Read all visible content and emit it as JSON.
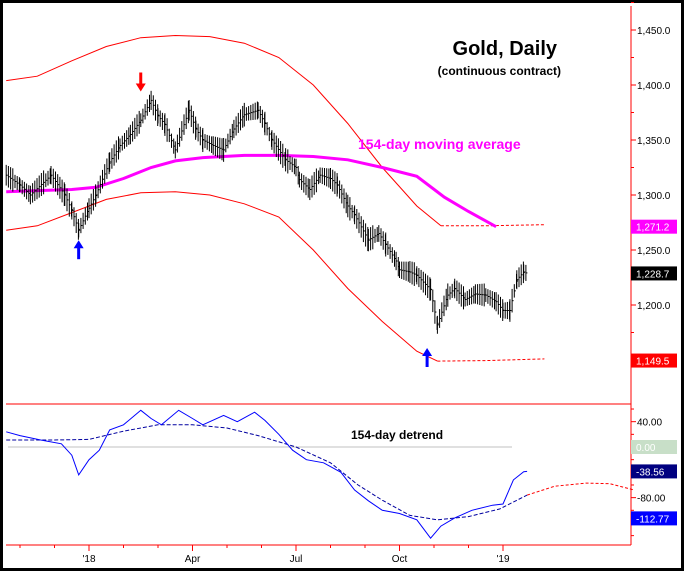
{
  "chart_data": [
    {
      "type": "line",
      "title": "Gold, Daily",
      "subtitle": "(continuous contract)",
      "x_unit": "months since Oct 1 2017",
      "ylim": [
        1110,
        1475
      ],
      "y_ticks": [
        "1,450.0",
        "1,400.0",
        "1,350.0",
        "1,300.0",
        "1,250.0",
        "1,200.0"
      ],
      "y_tick_values": [
        1450,
        1400,
        1350,
        1300,
        1250,
        1200
      ],
      "annotation_ma": "154-day moving average",
      "price_badges": [
        {
          "label": "1,271.2",
          "value": 1271.2,
          "color": "#ff00ff",
          "text_color": "#ffffff"
        },
        {
          "label": "1,228.7",
          "value": 1228.7,
          "color": "#000000",
          "text_color": "#ffffff"
        },
        {
          "label": "1,149.5",
          "value": 1149.5,
          "color": "#ff0000",
          "text_color": "#ffffff"
        }
      ],
      "price": [
        [
          0.6,
          1318
        ],
        [
          1.0,
          1309
        ],
        [
          1.3,
          1300
        ],
        [
          1.9,
          1318
        ],
        [
          2.3,
          1300
        ],
        [
          2.5,
          1286
        ],
        [
          2.7,
          1268
        ],
        [
          3.0,
          1288
        ],
        [
          3.2,
          1300
        ],
        [
          3.6,
          1330
        ],
        [
          3.9,
          1345
        ],
        [
          4.2,
          1355
        ],
        [
          4.5,
          1368
        ],
        [
          4.8,
          1386
        ],
        [
          5.0,
          1372
        ],
        [
          5.2,
          1364
        ],
        [
          5.5,
          1341
        ],
        [
          5.9,
          1377
        ],
        [
          6.1,
          1360
        ],
        [
          6.3,
          1350
        ],
        [
          6.6,
          1345
        ],
        [
          6.9,
          1341
        ],
        [
          7.2,
          1360
        ],
        [
          7.5,
          1373
        ],
        [
          7.9,
          1377
        ],
        [
          8.1,
          1365
        ],
        [
          8.3,
          1350
        ],
        [
          8.7,
          1332
        ],
        [
          9.0,
          1325
        ],
        [
          9.1,
          1314
        ],
        [
          9.4,
          1305
        ],
        [
          9.7,
          1318
        ],
        [
          10.0,
          1315
        ],
        [
          10.2,
          1309
        ],
        [
          10.5,
          1290
        ],
        [
          10.7,
          1282
        ],
        [
          11.1,
          1259
        ],
        [
          11.4,
          1265
        ],
        [
          11.6,
          1255
        ],
        [
          11.9,
          1240
        ],
        [
          12.0,
          1232
        ],
        [
          12.3,
          1230
        ],
        [
          12.5,
          1227
        ],
        [
          12.9,
          1214
        ],
        [
          13.1,
          1182
        ],
        [
          13.4,
          1209
        ],
        [
          13.6,
          1215
        ],
        [
          13.9,
          1205
        ],
        [
          14.2,
          1210
        ],
        [
          14.5,
          1209
        ],
        [
          14.8,
          1203
        ],
        [
          15.0,
          1195
        ],
        [
          15.2,
          1195
        ],
        [
          15.4,
          1223
        ],
        [
          15.6,
          1230
        ],
        [
          15.7,
          1228.7
        ]
      ],
      "ma_154": [
        [
          0.6,
          1303
        ],
        [
          1.5,
          1304
        ],
        [
          2.5,
          1305
        ],
        [
          3.2,
          1307
        ],
        [
          4.0,
          1315
        ],
        [
          4.8,
          1325
        ],
        [
          5.5,
          1331
        ],
        [
          6.3,
          1334
        ],
        [
          7.5,
          1336
        ],
        [
          8.5,
          1336
        ],
        [
          9.5,
          1335
        ],
        [
          10.5,
          1332
        ],
        [
          11.5,
          1325
        ],
        [
          12.5,
          1317
        ],
        [
          13.3,
          1298
        ],
        [
          14.0,
          1285
        ],
        [
          14.8,
          1271.2
        ]
      ],
      "upper_band": [
        [
          0.6,
          1404
        ],
        [
          1.5,
          1408
        ],
        [
          2.5,
          1422
        ],
        [
          3.5,
          1435
        ],
        [
          4.5,
          1443
        ],
        [
          5.5,
          1445
        ],
        [
          6.5,
          1444
        ],
        [
          7.5,
          1438
        ],
        [
          8.5,
          1425
        ],
        [
          9.5,
          1400
        ],
        [
          10.5,
          1365
        ],
        [
          11.5,
          1325
        ],
        [
          12.5,
          1290
        ],
        [
          13.2,
          1272
        ]
      ],
      "upper_band_projection": [
        [
          13.2,
          1272
        ],
        [
          14.5,
          1272
        ],
        [
          16.2,
          1273
        ]
      ],
      "lower_band": [
        [
          0.6,
          1268
        ],
        [
          1.5,
          1272
        ],
        [
          2.5,
          1284
        ],
        [
          3.5,
          1296
        ],
        [
          4.5,
          1302
        ],
        [
          5.5,
          1303
        ],
        [
          6.5,
          1300
        ],
        [
          7.5,
          1292
        ],
        [
          8.5,
          1280
        ],
        [
          9.5,
          1250
        ],
        [
          10.5,
          1215
        ],
        [
          11.5,
          1185
        ],
        [
          12.5,
          1158
        ],
        [
          13.1,
          1149
        ]
      ],
      "lower_band_projection": [
        [
          13.1,
          1149
        ],
        [
          14.5,
          1149.5
        ],
        [
          16.2,
          1151
        ]
      ],
      "arrows": [
        {
          "type": "down",
          "color": "#ff0000",
          "x": 4.5,
          "value": 1395
        },
        {
          "type": "up",
          "color": "#0000ff",
          "x": 2.7,
          "value": 1258
        },
        {
          "type": "up",
          "color": "#0000ff",
          "x": 12.8,
          "value": 1160
        }
      ]
    },
    {
      "type": "line",
      "title": "154-day detrend",
      "ylim": [
        -160,
        70
      ],
      "y_ticks": [
        "40.00",
        "-80.00"
      ],
      "y_tick_values": [
        40,
        -80
      ],
      "badges": [
        {
          "label": "0.00",
          "value": 0,
          "color": "#c8dfc8",
          "text_color": "#ffffff"
        },
        {
          "label": "-38.56",
          "value": -38.56,
          "color": "#000080",
          "text_color": "#ffffff"
        },
        {
          "label": "-112.77",
          "value": -112.77,
          "color": "#0000ff",
          "text_color": "#ffffff"
        }
      ],
      "detrend": [
        [
          0.6,
          24
        ],
        [
          1.0,
          18
        ],
        [
          1.6,
          11
        ],
        [
          2.2,
          5
        ],
        [
          2.5,
          -13
        ],
        [
          2.7,
          -44
        ],
        [
          3.0,
          -20
        ],
        [
          3.3,
          -5
        ],
        [
          3.6,
          27
        ],
        [
          4.0,
          35
        ],
        [
          4.5,
          58
        ],
        [
          4.8,
          45
        ],
        [
          5.1,
          35
        ],
        [
          5.6,
          58
        ],
        [
          6.0,
          45
        ],
        [
          6.3,
          35
        ],
        [
          6.9,
          50
        ],
        [
          7.3,
          40
        ],
        [
          7.8,
          55
        ],
        [
          8.1,
          42
        ],
        [
          8.5,
          20
        ],
        [
          8.9,
          -5
        ],
        [
          9.3,
          -20
        ],
        [
          9.8,
          -25
        ],
        [
          10.3,
          -40
        ],
        [
          10.7,
          -68
        ],
        [
          11.1,
          -85
        ],
        [
          11.5,
          -100
        ],
        [
          12.0,
          -105
        ],
        [
          12.5,
          -115
        ],
        [
          12.9,
          -144
        ],
        [
          13.2,
          -125
        ],
        [
          13.6,
          -112
        ],
        [
          14.1,
          -100
        ],
        [
          14.7,
          -92
        ],
        [
          15.0,
          -90
        ],
        [
          15.3,
          -52
        ],
        [
          15.6,
          -39
        ],
        [
          15.7,
          -38.56
        ]
      ],
      "cycle": [
        [
          0.6,
          11
        ],
        [
          2.0,
          11
        ],
        [
          3.0,
          12
        ],
        [
          4.0,
          25
        ],
        [
          5.0,
          35
        ],
        [
          6.0,
          35
        ],
        [
          7.0,
          30
        ],
        [
          7.9,
          18
        ],
        [
          9.0,
          0
        ],
        [
          10.0,
          -25
        ],
        [
          10.8,
          -60
        ],
        [
          11.5,
          -84
        ],
        [
          12.3,
          -108
        ],
        [
          13.1,
          -115
        ],
        [
          14.0,
          -110
        ],
        [
          14.9,
          -98
        ],
        [
          15.7,
          -76
        ]
      ],
      "cycle_projection": [
        [
          15.7,
          -76
        ],
        [
          16.5,
          -62
        ],
        [
          17.4,
          -57
        ],
        [
          18.1,
          -58
        ],
        [
          18.8,
          -68
        ]
      ]
    }
  ],
  "x_axis": {
    "labels": [
      {
        "label": "'18",
        "x": 3
      },
      {
        "label": "Apr",
        "x": 6
      },
      {
        "label": "Jul",
        "x": 9
      },
      {
        "label": "Oct",
        "x": 12
      },
      {
        "label": "'19",
        "x": 15
      }
    ],
    "minor_ticks": [
      1,
      2,
      4,
      5,
      7,
      8,
      10,
      11,
      13,
      14
    ]
  }
}
